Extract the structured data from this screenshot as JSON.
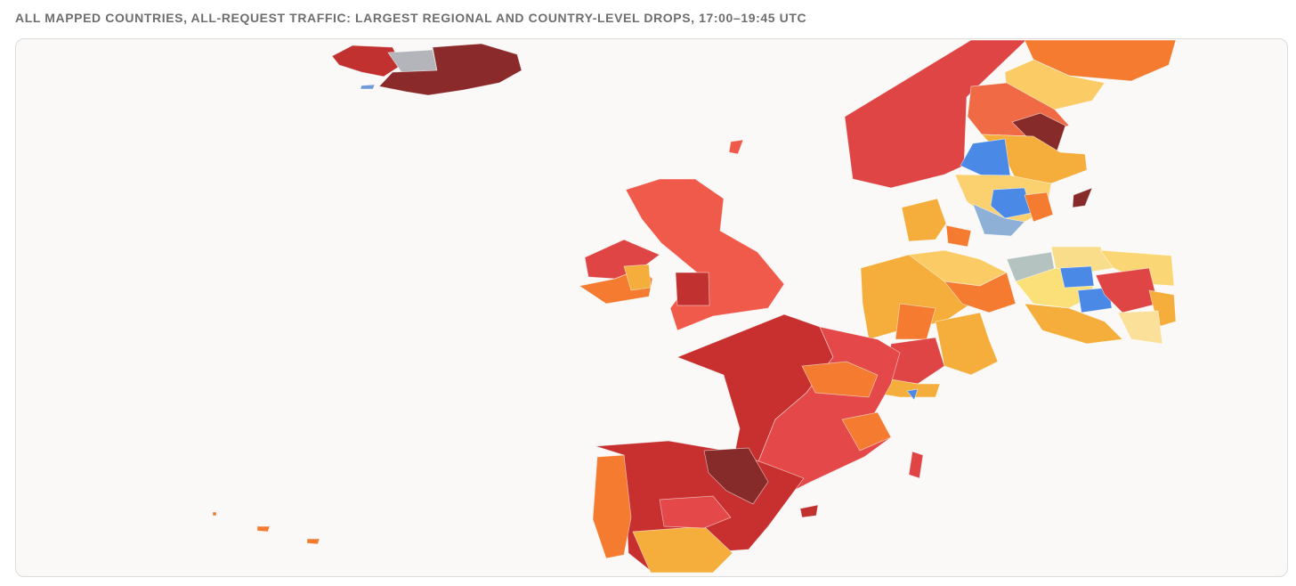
{
  "title": "ALL MAPPED COUNTRIES, ALL-REQUEST TRAFFIC: LARGEST REGIONAL AND COUNTRY-LEVEL DROPS, 17:00–19:45 UTC"
}
